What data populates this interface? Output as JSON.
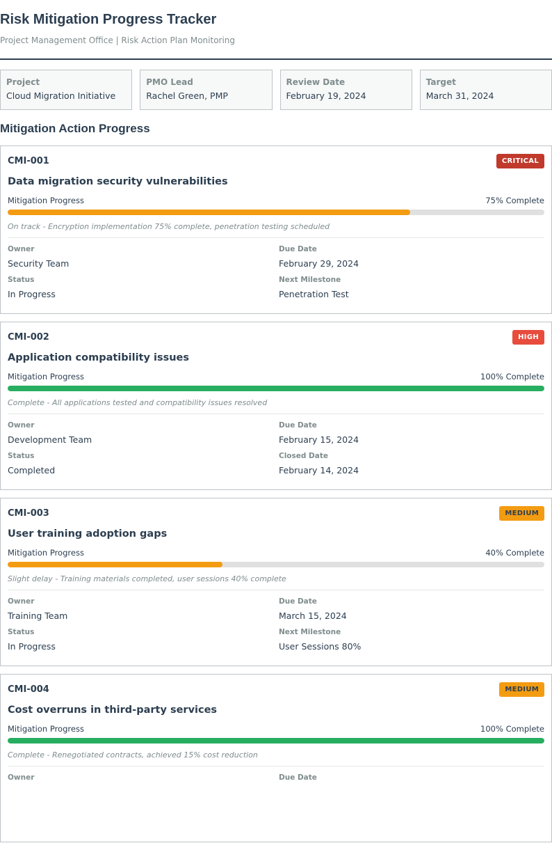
{
  "header": {
    "title": "Risk Mitigation Progress Tracker",
    "subtitle": "Project Management Office | Risk Action Plan Monitoring"
  },
  "info": [
    {
      "label": "Project",
      "value": "Cloud Migration Initiative"
    },
    {
      "label": "PMO Lead",
      "value": "Rachel Green, PMP"
    },
    {
      "label": "Review Date",
      "value": "February 19, 2024"
    },
    {
      "label": "Target",
      "value": "March 31, 2024"
    }
  ],
  "section_title": "Mitigation Action Progress",
  "colors": {
    "critical": "#c0392b",
    "high": "#e74c3c",
    "medium": "#f39c12",
    "in_progress": "#f39c12",
    "complete": "#27ae60"
  },
  "risks": [
    {
      "id": "CMI-001",
      "severity": "CRITICAL",
      "title": "Data migration security vulnerabilities",
      "progress_label": "Mitigation Progress",
      "progress": 75,
      "progress_text": "75% Complete",
      "note": "On track - Encryption implementation 75% complete, penetration testing scheduled",
      "fields": [
        {
          "label": "Owner",
          "value": "Security Team"
        },
        {
          "label": "Due Date",
          "value": "February 29, 2024"
        },
        {
          "label": "Status",
          "value": "In Progress"
        },
        {
          "label": "Next Milestone",
          "value": "Penetration Test"
        }
      ]
    },
    {
      "id": "CMI-002",
      "severity": "HIGH",
      "title": "Application compatibility issues",
      "progress_label": "Mitigation Progress",
      "progress": 100,
      "progress_text": "100% Complete",
      "note": "Complete - All applications tested and compatibility issues resolved",
      "fields": [
        {
          "label": "Owner",
          "value": "Development Team"
        },
        {
          "label": "Due Date",
          "value": "February 15, 2024"
        },
        {
          "label": "Status",
          "value": "Completed"
        },
        {
          "label": "Closed Date",
          "value": "February 14, 2024"
        }
      ]
    },
    {
      "id": "CMI-003",
      "severity": "MEDIUM",
      "title": "User training adoption gaps",
      "progress_label": "Mitigation Progress",
      "progress": 40,
      "progress_text": "40% Complete",
      "note": "Slight delay - Training materials completed, user sessions 40% complete",
      "fields": [
        {
          "label": "Owner",
          "value": "Training Team"
        },
        {
          "label": "Due Date",
          "value": "March 15, 2024"
        },
        {
          "label": "Status",
          "value": "In Progress"
        },
        {
          "label": "Next Milestone",
          "value": "User Sessions 80%"
        }
      ]
    },
    {
      "id": "CMI-004",
      "severity": "MEDIUM",
      "title": "Cost overruns in third-party services",
      "progress_label": "Mitigation Progress",
      "progress": 100,
      "progress_text": "100% Complete",
      "note": "Complete - Renegotiated contracts, achieved 15% cost reduction",
      "fields": [
        {
          "label": "Owner",
          "value": ""
        },
        {
          "label": "Due Date",
          "value": ""
        }
      ]
    }
  ]
}
